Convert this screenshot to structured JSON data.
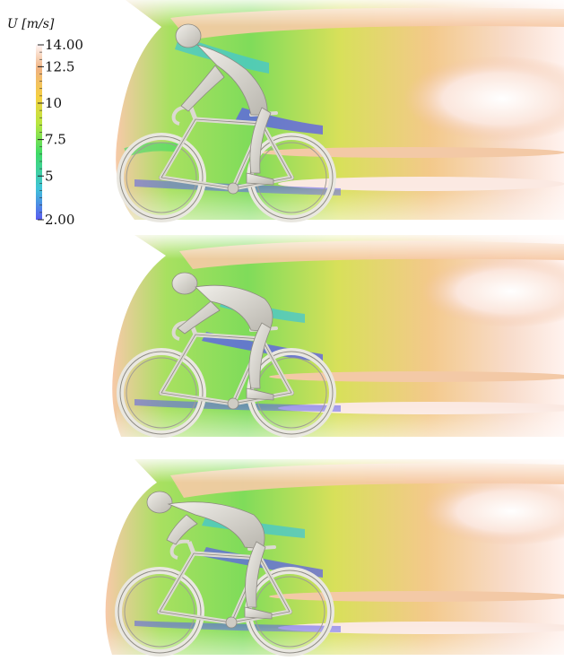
{
  "colorbar": {
    "title": "U [m/s]",
    "min_label": "2.00",
    "max_label": "14.00",
    "ticks": [
      {
        "value": 14.0,
        "label": "14.00"
      },
      {
        "value": 12.5,
        "label": "12.5"
      },
      {
        "value": 10,
        "label": "10"
      },
      {
        "value": 7.5,
        "label": "7.5"
      },
      {
        "value": 5,
        "label": "5"
      },
      {
        "value": 2.0,
        "label": "2.00"
      }
    ],
    "range": [
      2.0,
      14.0
    ],
    "colors": [
      "#5a5af0",
      "#3fc4d8",
      "#3fdb66",
      "#b8e640",
      "#f5d040",
      "#f0b27e",
      "#fff4f4"
    ]
  },
  "panels": [
    {
      "id": "panel-1",
      "posture": "upright"
    },
    {
      "id": "panel-2",
      "posture": "drops"
    },
    {
      "id": "panel-3",
      "posture": "time-trial"
    }
  ]
}
